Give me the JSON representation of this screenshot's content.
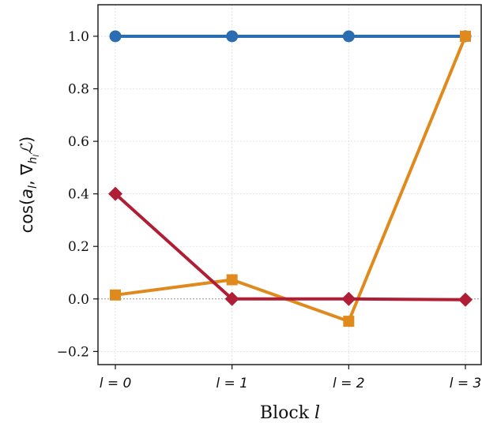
{
  "chart_data": {
    "type": "line",
    "categories": [
      "l = 0",
      "l = 1",
      "l = 2",
      "l = 3"
    ],
    "x": [
      0,
      1,
      2,
      3
    ],
    "xlabel": "Block l",
    "ylabel": "cos(a_l, ∇h_l L)",
    "ylim": [
      -0.25,
      1.12
    ],
    "yticks": [
      "−0.2",
      "0.0",
      "0.2",
      "0.4",
      "0.6",
      "0.8",
      "1.0"
    ],
    "ytick_values": [
      -0.2,
      0.0,
      0.2,
      0.4,
      0.6,
      0.8,
      1.0
    ],
    "grid": true,
    "zero_line": true,
    "series": [
      {
        "color": "#2a6db0",
        "marker": "circle",
        "values": [
          1.0,
          1.0,
          1.0,
          1.0
        ]
      },
      {
        "color": "#e08a1e",
        "marker": "square",
        "values": [
          0.015,
          0.073,
          -0.085,
          1.0
        ]
      },
      {
        "color": "#b01e35",
        "marker": "diamond",
        "values": [
          0.4,
          0.0,
          0.0,
          -0.003
        ]
      }
    ]
  }
}
